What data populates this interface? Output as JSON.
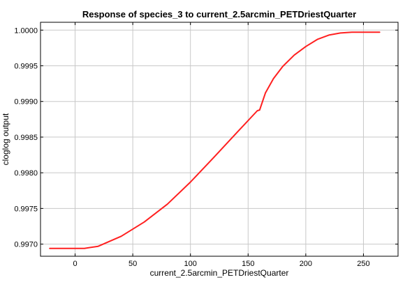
{
  "chart_data": {
    "type": "line",
    "title": "Response of species_3 to current_2.5arcmin_PETDriestQuarter",
    "xlabel": "current_2.5arcmin_PETDriestQuarter",
    "ylabel": "cloglog output",
    "xlim": [
      -30,
      280
    ],
    "ylim": [
      0.99683,
      1.00011
    ],
    "x_ticks": [
      0,
      50,
      100,
      150,
      200,
      250
    ],
    "x_tick_labels": [
      "0",
      "50",
      "100",
      "150",
      "200",
      "250"
    ],
    "y_ticks": [
      0.997,
      0.9975,
      0.998,
      0.9985,
      0.999,
      0.9995,
      1.0
    ],
    "y_tick_labels": [
      "0.9970",
      "0.9975",
      "0.9980",
      "0.9985",
      "0.9990",
      "0.9995",
      "1.0000"
    ],
    "grid": true,
    "series": [
      {
        "color": "#ff2020",
        "x": [
          -22,
          0,
          8,
          20,
          40,
          60,
          80,
          100,
          120,
          140,
          158,
          160,
          165,
          172,
          180,
          190,
          200,
          210,
          220,
          230,
          240,
          264
        ],
        "y": [
          0.99694,
          0.99694,
          0.99694,
          0.99697,
          0.99711,
          0.99731,
          0.99756,
          0.99787,
          0.99821,
          0.99856,
          0.99887,
          0.99888,
          0.99912,
          0.99932,
          0.99949,
          0.99965,
          0.99977,
          0.99987,
          0.99993,
          0.99996,
          0.99997,
          0.99997
        ]
      }
    ]
  }
}
